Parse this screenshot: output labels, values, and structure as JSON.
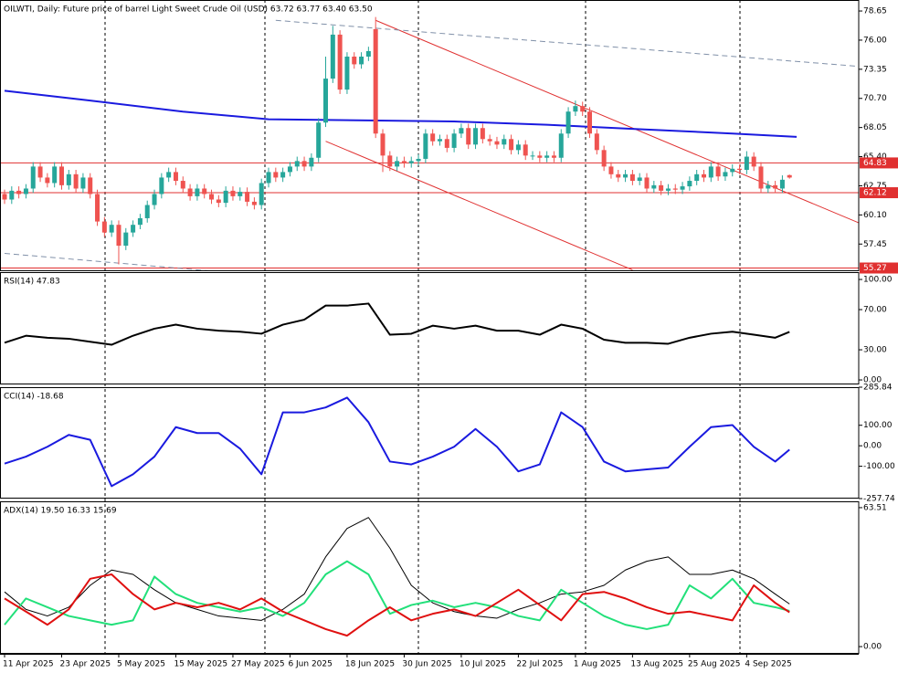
{
  "chart_data": [
    {
      "type": "candlestick",
      "title": "OILWTI, Daily:  Future price of barrel Light Sweet Crude Oil (USD)  63.72 63.77 63.40 63.50",
      "up_color": "#26a69a",
      "down_color": "#ef5350",
      "xlim": [
        -0.64,
        119.7
      ],
      "ylim": [
        54.98,
        79.65
      ],
      "yticks": [
        78.65,
        {
          "value": 76,
          "label": "76.00"
        },
        73.35,
        {
          "value": 70.7,
          "label": "70.70"
        },
        68.05,
        {
          "value": 65.4,
          "label": "65.40"
        },
        62.75,
        {
          "value": 60.1,
          "label": "60.10"
        },
        57.45
      ],
      "xticks": [
        {
          "value": 0,
          "label": "11 Apr 2025"
        },
        {
          "value": 8,
          "label": "23 Apr 2025"
        },
        {
          "value": 16,
          "label": "5 May 2025"
        },
        {
          "value": 24,
          "label": "15 May 2025"
        },
        {
          "value": 32,
          "label": "27 May 2025"
        },
        {
          "value": 40,
          "label": "6 Jun 2025"
        },
        {
          "value": 48,
          "label": "18 Jun 2025"
        },
        {
          "value": 56,
          "label": "30 Jun 2025"
        },
        {
          "value": 64,
          "label": "10 Jul 2025"
        },
        {
          "value": 72,
          "label": "22 Jul 2025"
        },
        {
          "value": 80,
          "label": "1 Aug 2025"
        },
        {
          "value": 88,
          "label": "13 Aug 2025"
        },
        {
          "value": 96,
          "label": "25 Aug 2025"
        },
        {
          "value": 104,
          "label": "4 Sep 2025"
        }
      ],
      "candles": [
        [
          62.0,
          62.4,
          61.1,
          61.5
        ],
        [
          61.5,
          62.7,
          61.1,
          62.3
        ],
        [
          62.3,
          62.7,
          61.6,
          62.0
        ],
        [
          62.0,
          62.9,
          61.6,
          62.5
        ],
        [
          62.5,
          64.9,
          62.1,
          64.5
        ],
        [
          64.5,
          64.9,
          63.1,
          63.5
        ],
        [
          63.5,
          63.9,
          62.6,
          63.0
        ],
        [
          63.0,
          64.9,
          62.6,
          64.5
        ],
        [
          64.5,
          64.9,
          62.4,
          62.8
        ],
        [
          62.8,
          64.2,
          62.4,
          63.8
        ],
        [
          63.8,
          64.2,
          62.1,
          62.5
        ],
        [
          62.5,
          63.9,
          62.1,
          63.5
        ],
        [
          63.5,
          63.9,
          61.6,
          62.0
        ],
        [
          62.0,
          62.4,
          59.1,
          59.5
        ],
        [
          59.5,
          59.9,
          58.1,
          58.5
        ],
        [
          58.5,
          59.6,
          58.1,
          59.2
        ],
        [
          59.2,
          59.6,
          55.6,
          57.3
        ],
        [
          57.3,
          58.9,
          56.9,
          58.5
        ],
        [
          58.5,
          59.6,
          58.1,
          59.2
        ],
        [
          59.2,
          60.2,
          58.8,
          59.8
        ],
        [
          59.8,
          61.4,
          59.4,
          61.0
        ],
        [
          61.0,
          62.4,
          60.6,
          62.0
        ],
        [
          62.0,
          63.9,
          61.6,
          63.5
        ],
        [
          63.5,
          64.4,
          63.1,
          64.0
        ],
        [
          64.0,
          64.4,
          62.8,
          63.2
        ],
        [
          63.2,
          63.6,
          62.1,
          62.5
        ],
        [
          62.5,
          62.9,
          61.4,
          61.8
        ],
        [
          61.8,
          62.9,
          61.4,
          62.5
        ],
        [
          62.5,
          62.9,
          61.6,
          62.0
        ],
        [
          62.0,
          62.4,
          61.1,
          61.5
        ],
        [
          61.5,
          61.9,
          60.8,
          61.2
        ],
        [
          61.2,
          62.7,
          60.8,
          62.3
        ],
        [
          62.3,
          62.7,
          61.4,
          61.8
        ],
        [
          61.8,
          62.6,
          61.4,
          62.2
        ],
        [
          62.2,
          62.6,
          60.9,
          61.3
        ],
        [
          61.3,
          61.7,
          60.6,
          61.0
        ],
        [
          61.0,
          63.4,
          60.6,
          63.0
        ],
        [
          63.0,
          64.4,
          62.6,
          64.0
        ],
        [
          64.0,
          64.4,
          63.1,
          63.5
        ],
        [
          63.5,
          64.4,
          63.1,
          64.0
        ],
        [
          64.0,
          64.9,
          63.6,
          64.5
        ],
        [
          64.5,
          65.4,
          64.1,
          65.0
        ],
        [
          65.0,
          65.4,
          64.1,
          64.5
        ],
        [
          64.5,
          65.7,
          64.1,
          65.3
        ],
        [
          65.3,
          68.9,
          64.9,
          68.5
        ],
        [
          68.5,
          74.5,
          68.1,
          72.5
        ],
        [
          72.5,
          77.3,
          72.1,
          76.5
        ],
        [
          76.5,
          76.9,
          71.1,
          71.5
        ],
        [
          71.5,
          74.9,
          71.1,
          74.5
        ],
        [
          74.5,
          74.9,
          73.4,
          73.8
        ],
        [
          73.8,
          74.9,
          73.4,
          74.5
        ],
        [
          74.5,
          75.4,
          74.1,
          75.0
        ],
        [
          77.0,
          78.1,
          67.1,
          67.5
        ],
        [
          67.5,
          67.9,
          64.0,
          65.5
        ],
        [
          65.5,
          65.9,
          64.1,
          64.5
        ],
        [
          64.5,
          65.4,
          64.1,
          65.0
        ],
        [
          65.0,
          65.4,
          64.4,
          64.8
        ],
        [
          64.8,
          65.4,
          64.4,
          65.0
        ],
        [
          65.0,
          65.6,
          64.6,
          65.2
        ],
        [
          65.2,
          67.9,
          64.8,
          67.5
        ],
        [
          67.5,
          67.9,
          66.4,
          66.8
        ],
        [
          66.8,
          67.4,
          66.4,
          67.0
        ],
        [
          67.0,
          67.4,
          65.8,
          66.2
        ],
        [
          66.2,
          67.9,
          65.8,
          67.5
        ],
        [
          67.5,
          68.4,
          67.1,
          68.0
        ],
        [
          68.0,
          68.4,
          66.1,
          66.5
        ],
        [
          66.5,
          68.4,
          66.1,
          68.0
        ],
        [
          68.0,
          68.4,
          66.6,
          67.0
        ],
        [
          67.0,
          67.4,
          66.4,
          66.8
        ],
        [
          66.8,
          67.2,
          66.1,
          66.5
        ],
        [
          66.5,
          67.4,
          66.1,
          67.0
        ],
        [
          67.0,
          67.4,
          65.6,
          66.0
        ],
        [
          66.0,
          66.9,
          65.6,
          66.5
        ],
        [
          66.5,
          66.9,
          65.1,
          65.5
        ],
        [
          65.5,
          65.9,
          65.1,
          65.5
        ],
        [
          65.5,
          65.9,
          64.9,
          65.3
        ],
        [
          65.3,
          65.9,
          64.9,
          65.5
        ],
        [
          65.5,
          65.9,
          64.9,
          65.3
        ],
        [
          65.3,
          67.9,
          64.9,
          67.5
        ],
        [
          67.5,
          69.9,
          67.1,
          69.5
        ],
        [
          69.5,
          70.5,
          69.1,
          70.0
        ],
        [
          70.0,
          70.4,
          69.1,
          69.5
        ],
        [
          69.5,
          69.9,
          67.1,
          67.5
        ],
        [
          67.5,
          67.9,
          65.6,
          66.0
        ],
        [
          66.0,
          66.4,
          64.1,
          64.5
        ],
        [
          64.5,
          64.9,
          63.4,
          63.8
        ],
        [
          63.8,
          64.2,
          63.1,
          63.5
        ],
        [
          63.5,
          64.2,
          63.1,
          63.8
        ],
        [
          63.8,
          64.2,
          62.8,
          63.2
        ],
        [
          63.2,
          63.9,
          62.8,
          63.5
        ],
        [
          63.5,
          63.9,
          62.1,
          62.5
        ],
        [
          62.5,
          63.2,
          62.1,
          62.8
        ],
        [
          62.8,
          63.2,
          61.9,
          62.3
        ],
        [
          62.3,
          62.9,
          61.9,
          62.5
        ],
        [
          62.5,
          62.9,
          62.0,
          62.4
        ],
        [
          62.4,
          63.1,
          62.0,
          62.7
        ],
        [
          62.7,
          63.6,
          62.3,
          63.2
        ],
        [
          63.2,
          64.2,
          62.8,
          63.8
        ],
        [
          63.8,
          64.2,
          63.1,
          63.5
        ],
        [
          63.5,
          64.9,
          63.1,
          64.5
        ],
        [
          64.5,
          64.9,
          63.2,
          63.6
        ],
        [
          63.6,
          64.4,
          63.2,
          64.0
        ],
        [
          64.0,
          64.7,
          63.6,
          64.3
        ],
        [
          64.3,
          64.7,
          63.8,
          64.2
        ],
        [
          64.2,
          65.9,
          63.8,
          65.4
        ],
        [
          65.4,
          65.8,
          64.1,
          64.5
        ],
        [
          64.5,
          64.9,
          62.1,
          62.5
        ],
        [
          62.5,
          63.2,
          62.1,
          62.8
        ],
        [
          62.8,
          63.2,
          62.1,
          62.5
        ],
        [
          62.5,
          63.7,
          62.1,
          63.3
        ],
        [
          63.72,
          63.77,
          63.4,
          63.5
        ]
      ],
      "ma": {
        "color": "#1a1adf",
        "x": [
          0,
          12,
          25,
          37,
          51,
          63,
          76,
          89,
          102,
          111
        ],
        "values": [
          71.4,
          70.5,
          69.5,
          68.8,
          68.7,
          68.6,
          68.3,
          67.9,
          67.5,
          67.2
        ]
      },
      "trendlines": [
        {
          "color": "#e03030",
          "dash": false,
          "x": [
            52,
            120
          ],
          "y": [
            77.8,
            59.3
          ]
        },
        {
          "color": "#e03030",
          "dash": false,
          "x": [
            45,
            88
          ],
          "y": [
            66.8,
            55.1
          ]
        },
        {
          "color": "#8090a8",
          "dash": true,
          "x": [
            38,
            120
          ],
          "y": [
            77.8,
            73.6
          ]
        },
        {
          "color": "#8090a8",
          "dash": true,
          "x": [
            0,
            38
          ],
          "y": [
            56.6,
            54.5
          ]
        }
      ],
      "hlines": [
        {
          "value": 64.83,
          "color": "#e03030"
        },
        {
          "value": 62.12,
          "color": "#e03030"
        },
        {
          "value": 55.27,
          "color": "#e03030"
        }
      ]
    },
    {
      "type": "line",
      "title": "RSI(14) 47.83",
      "xlim": [
        -0.64,
        119.7
      ],
      "ylim": [
        -4.5,
        107.3
      ],
      "yticks": [
        {
          "value": 100,
          "label": "100.00"
        },
        {
          "value": 70,
          "label": "70.00"
        },
        {
          "value": 30,
          "label": "30.00"
        },
        {
          "value": 0,
          "label": "0.00"
        }
      ],
      "x": [
        0,
        3,
        6,
        9,
        12,
        15,
        18,
        21,
        24,
        27,
        30,
        33,
        36,
        39,
        42,
        45,
        48,
        51,
        54,
        57,
        60,
        63,
        66,
        69,
        72,
        75,
        78,
        81,
        84,
        87,
        90,
        93,
        96,
        99,
        102,
        105,
        108,
        110
      ],
      "series": [
        {
          "color": "#000000",
          "width": 2,
          "values": [
            37,
            44,
            42,
            41,
            38,
            35,
            44,
            51,
            55,
            51,
            49,
            48,
            46,
            55,
            60,
            74,
            74,
            76,
            45,
            46,
            54,
            51,
            54,
            49,
            49,
            45,
            55,
            51,
            40,
            37,
            37,
            36,
            42,
            46,
            48,
            45,
            42,
            47.83
          ]
        }
      ]
    },
    {
      "type": "line",
      "title": "CCI(14) -18.68",
      "xlim": [
        -0.64,
        119.7
      ],
      "ylim": [
        -257.74,
        285.84
      ],
      "yticks": [
        285.84,
        {
          "value": 100,
          "label": "100.00"
        },
        {
          "value": 0,
          "label": "0.00"
        },
        {
          "value": -100,
          "label": "-100.00"
        },
        -257.74
      ],
      "x": [
        0,
        3,
        6,
        9,
        12,
        15,
        18,
        21,
        24,
        27,
        30,
        33,
        36,
        39,
        42,
        45,
        48,
        51,
        54,
        57,
        60,
        63,
        66,
        69,
        72,
        75,
        78,
        81,
        84,
        87,
        90,
        93,
        96,
        99,
        102,
        105,
        108,
        110
      ],
      "series": [
        {
          "color": "#1a1adf",
          "width": 2,
          "values": [
            -87,
            -53,
            -5,
            53,
            29,
            -197,
            -139,
            -53,
            91,
            62,
            62,
            -14,
            -139,
            163,
            163,
            187,
            235,
            115,
            -77,
            -91,
            -53,
            -5,
            82,
            -5,
            -125,
            -91,
            163,
            91,
            -77,
            -125,
            -115,
            -106,
            -5,
            91,
            101,
            -5,
            -77,
            -18.68
          ]
        }
      ]
    },
    {
      "type": "line",
      "title": "ADX(14) 19.50 16.33 15.69",
      "xlim": [
        -0.64,
        119.7
      ],
      "ylim": [
        -3.3,
        66.4
      ],
      "yticks": [
        63.51,
        {
          "value": 0,
          "label": "0.00"
        }
      ],
      "x": [
        0,
        3,
        6,
        9,
        12,
        15,
        18,
        21,
        24,
        27,
        30,
        33,
        36,
        39,
        42,
        45,
        48,
        51,
        54,
        57,
        60,
        63,
        66,
        69,
        72,
        75,
        78,
        81,
        84,
        87,
        90,
        93,
        96,
        99,
        102,
        105,
        108,
        110
      ],
      "series": [
        {
          "color": "#000000",
          "width": 1,
          "values": [
            25,
            17,
            14,
            18,
            28,
            35,
            33,
            26,
            20,
            17,
            14,
            13,
            12,
            17,
            24,
            41,
            54,
            59,
            45,
            28,
            20,
            16,
            14,
            13,
            17,
            20,
            24,
            25,
            28,
            35,
            39,
            41,
            33,
            33,
            35,
            31,
            24,
            19.5
          ]
        },
        {
          "color": "#22e07a",
          "width": 2,
          "values": [
            10,
            22,
            18,
            14,
            12,
            10,
            12,
            32,
            24,
            20,
            18,
            16,
            18,
            14,
            20,
            33,
            39,
            33,
            15,
            19,
            21,
            18,
            20,
            18,
            14,
            12,
            26,
            20,
            14,
            10,
            8,
            10,
            28,
            22,
            31,
            20,
            18,
            16.33
          ]
        },
        {
          "color": "#e01010",
          "width": 2,
          "values": [
            22,
            16,
            10,
            17,
            31,
            33,
            24,
            17,
            20,
            18,
            20,
            17,
            22,
            16,
            12,
            8,
            5,
            12,
            18,
            12,
            15,
            17,
            14,
            20,
            26,
            19,
            12,
            24,
            25,
            22,
            18,
            15,
            16,
            14,
            12,
            28,
            20,
            15.69
          ]
        }
      ]
    }
  ]
}
